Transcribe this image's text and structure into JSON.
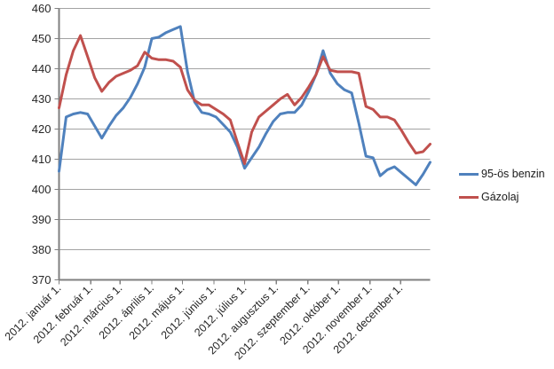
{
  "chart_data": {
    "type": "line",
    "title": "",
    "xlabel": "",
    "ylabel": "",
    "ylim": [
      370,
      460
    ],
    "y_ticks": [
      370,
      380,
      390,
      400,
      410,
      420,
      430,
      440,
      450,
      460
    ],
    "grid": true,
    "legend_position": "right",
    "x_unit": "weekly observations, year 2012",
    "x_step_days": 7,
    "x_range_days": 364,
    "x_tick_labels": [
      "2012. január 1.",
      "2012. február 1.",
      "2012. március 1.",
      "2012. április 1.",
      "2012. május 1.",
      "2012. június 1.",
      "2012. július 1.",
      "2012. augusztus 1.",
      "2012. szeptember 1.",
      "2012. október 1.",
      "2012. november 1.",
      "2012. december 1."
    ],
    "x_tick_day_offsets": [
      0,
      31,
      60,
      91,
      121,
      152,
      182,
      213,
      244,
      274,
      305,
      335
    ],
    "series": [
      {
        "name": "95-ös benzin",
        "color": "#4F81BD",
        "values": [
          406,
          424,
          425,
          425.5,
          425,
          421,
          417,
          421,
          424.5,
          427,
          430.5,
          435,
          440.5,
          450,
          450.5,
          452,
          453,
          454,
          439,
          429,
          425.5,
          425,
          424,
          421.5,
          419,
          414,
          407,
          410.5,
          414,
          418.5,
          422.5,
          425,
          425.5,
          425.5,
          428,
          432.5,
          438,
          446,
          438.5,
          435,
          433,
          432,
          422,
          411,
          410.5,
          404.5,
          406.5,
          407.5,
          405.5,
          403.5,
          401.5,
          405,
          409
        ]
      },
      {
        "name": "Gázolaj",
        "color": "#C0504D",
        "values": [
          427,
          438,
          446,
          451,
          444,
          437,
          432.5,
          435.5,
          437.5,
          438.5,
          439.5,
          441,
          445.5,
          443.5,
          443,
          443,
          442.5,
          440.5,
          433,
          429.5,
          428,
          428,
          426.5,
          425,
          423,
          415.5,
          408.5,
          419,
          424,
          426,
          428,
          430,
          431.5,
          428,
          430.5,
          434,
          438,
          444,
          439.5,
          439,
          439,
          439,
          438.5,
          427.5,
          426.5,
          424,
          424,
          423,
          419.5,
          415.5,
          412,
          412.5,
          415
        ]
      }
    ]
  },
  "legend": {
    "items": [
      {
        "label": "95-ös benzin"
      },
      {
        "label": "Gázolaj"
      }
    ]
  }
}
